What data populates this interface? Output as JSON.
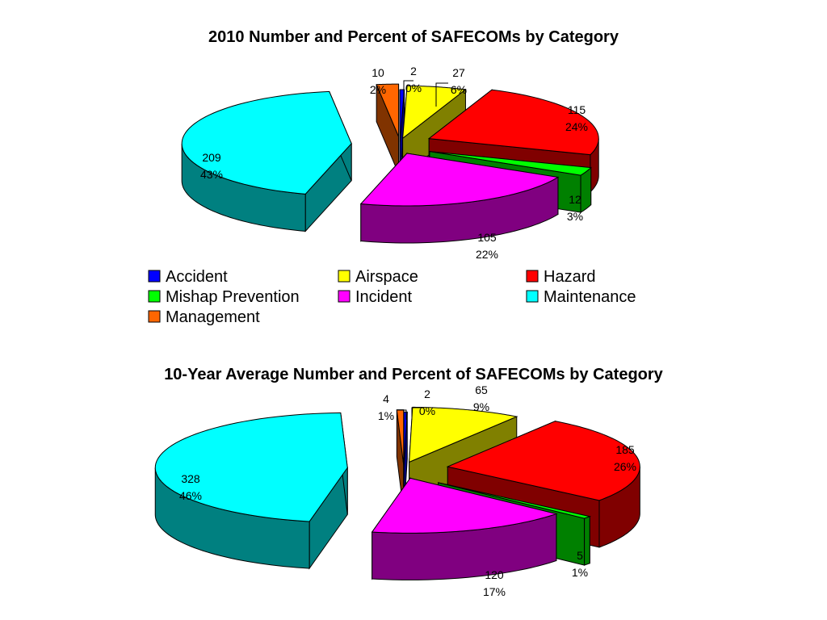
{
  "chart_data": [
    {
      "type": "pie",
      "title": "2010 Number and Percent of SAFECOMs by Category",
      "categories": [
        "Accident",
        "Airspace",
        "Hazard",
        "Mishap Prevention",
        "Incident",
        "Maintenance",
        "Management"
      ],
      "values": [
        2,
        27,
        115,
        12,
        105,
        209,
        10
      ],
      "percent_labels": [
        "0%",
        "6%",
        "24%",
        "3%",
        "22%",
        "43%",
        "2%"
      ],
      "value_labels": [
        "2",
        "27",
        "115",
        "12",
        "105",
        "209",
        "10"
      ],
      "colors": [
        "#0000ff",
        "#ffff00",
        "#ff0000",
        "#00ff00",
        "#ff00ff",
        "#00ffff",
        "#ff6600"
      ],
      "exploded": true,
      "three_d": true,
      "legend_position": "bottom"
    },
    {
      "type": "pie",
      "title": "10-Year Average  Number and Percent of SAFECOMs by Category",
      "categories": [
        "Accident",
        "Airspace",
        "Hazard",
        "Mishap Prevention",
        "Incident",
        "Maintenance",
        "Management"
      ],
      "values": [
        2,
        65,
        185,
        5,
        120,
        328,
        4
      ],
      "percent_labels": [
        "0%",
        "9%",
        "26%",
        "1%",
        "17%",
        "46%",
        "1%"
      ],
      "value_labels": [
        "2",
        "65",
        "185",
        "5",
        "120",
        "328",
        "4"
      ],
      "colors": [
        "#0000ff",
        "#ffff00",
        "#ff0000",
        "#00ff00",
        "#ff00ff",
        "#00ffff",
        "#ff6600"
      ],
      "exploded": true,
      "three_d": true
    }
  ],
  "legend": {
    "items": [
      {
        "label": "Accident",
        "color": "#0000ff"
      },
      {
        "label": "Airspace",
        "color": "#ffff00"
      },
      {
        "label": "Hazard",
        "color": "#ff0000"
      },
      {
        "label": "Mishap Prevention",
        "color": "#00ff00"
      },
      {
        "label": "Incident",
        "color": "#ff00ff"
      },
      {
        "label": "Maintenance",
        "color": "#00ffff"
      },
      {
        "label": "Management",
        "color": "#ff6600"
      }
    ]
  }
}
